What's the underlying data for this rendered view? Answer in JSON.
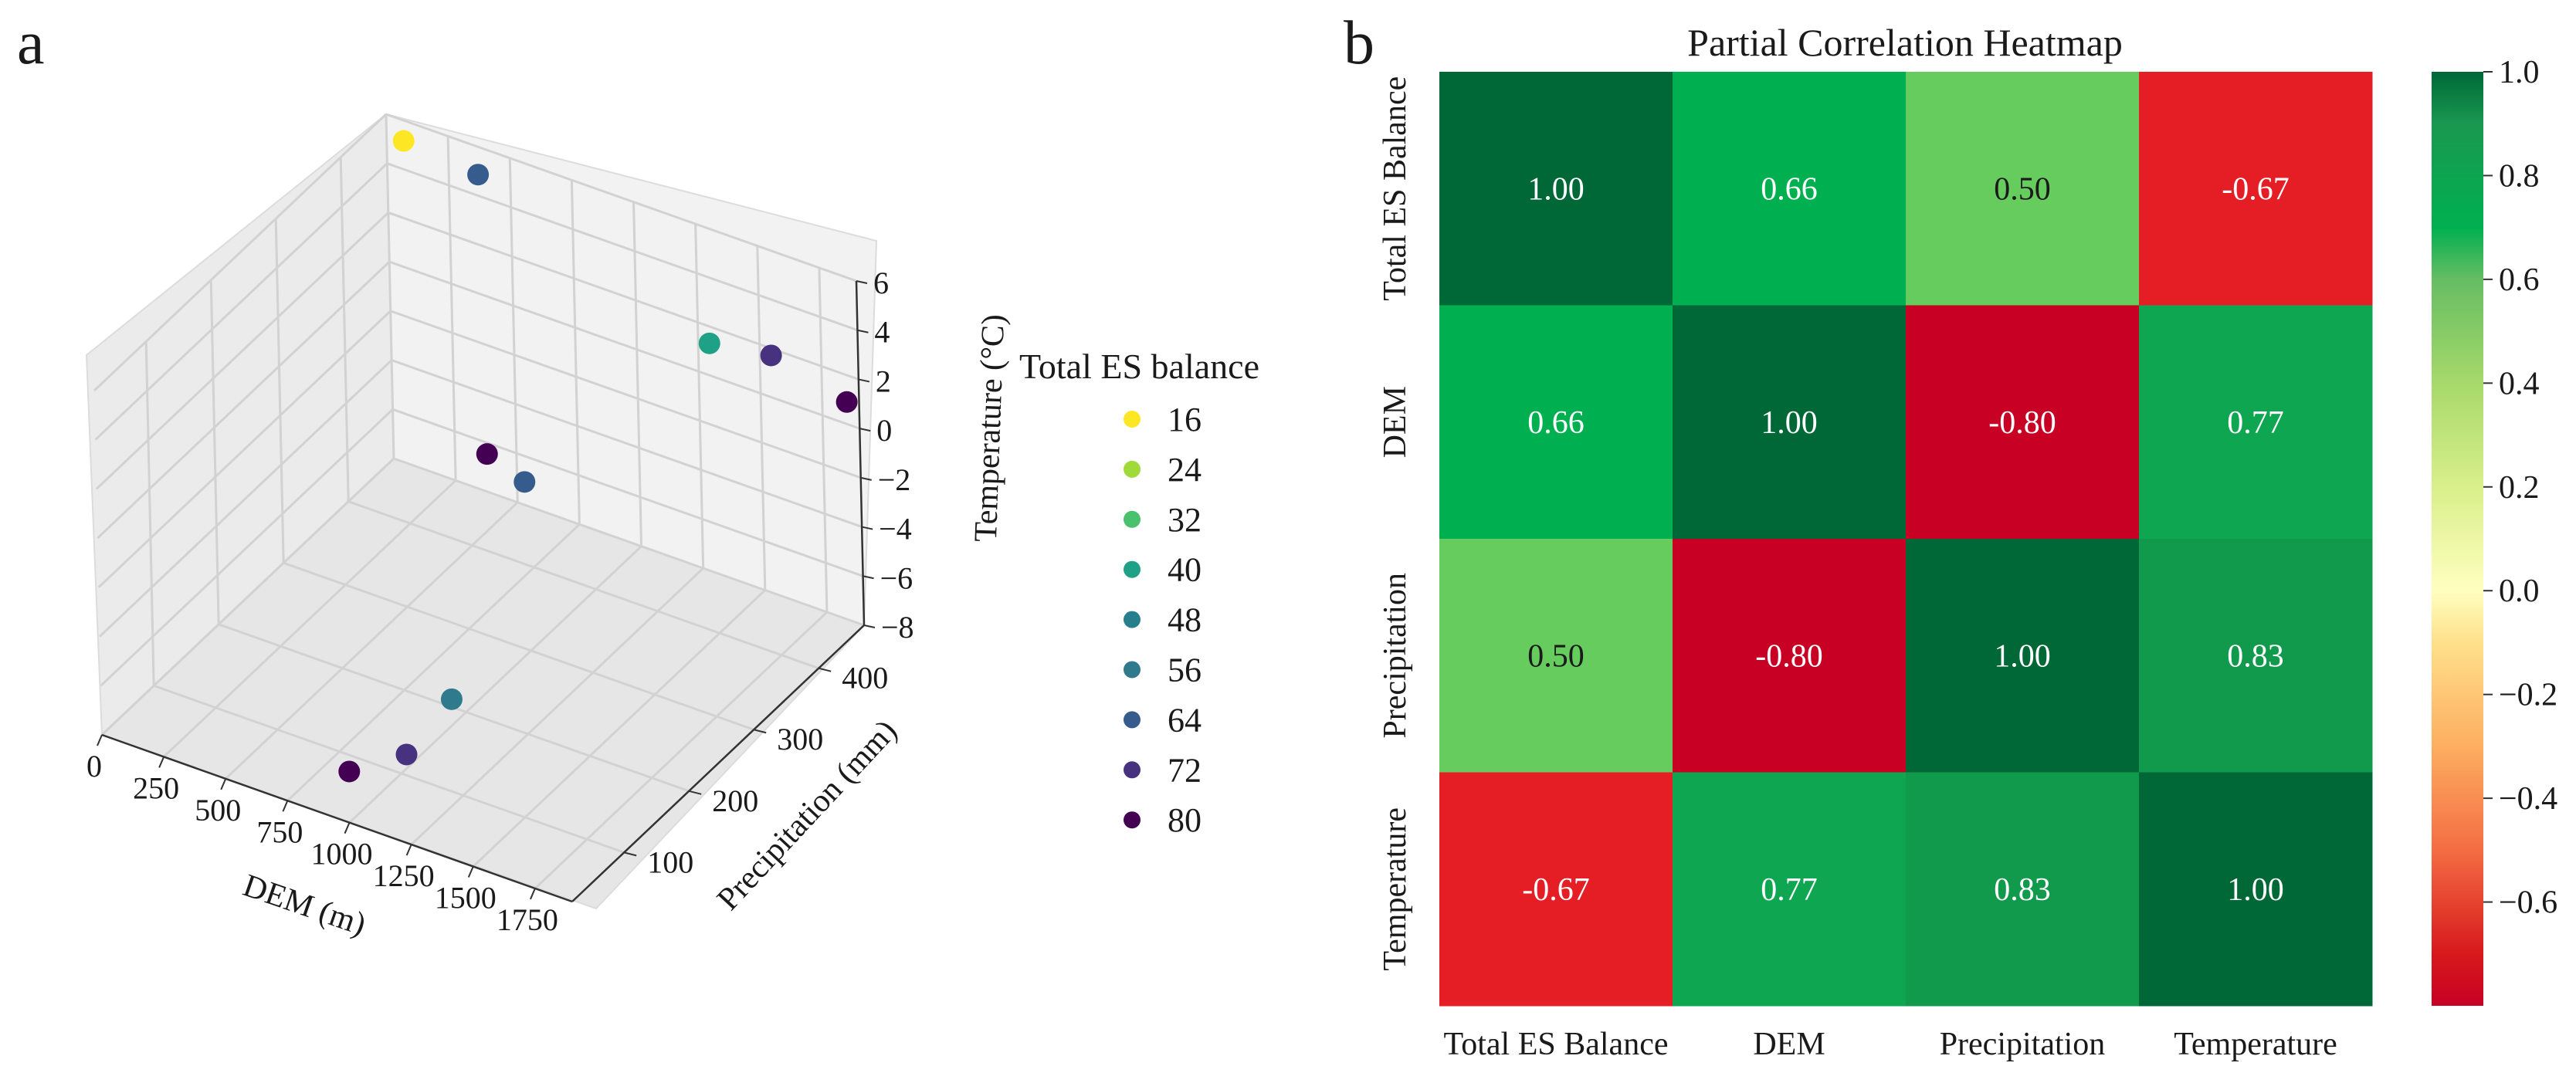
{
  "panels": {
    "a": "a",
    "b": "b"
  },
  "chart_data": [
    {
      "type": "scatter3d",
      "panel": "a",
      "xlabel": "DEM (m)",
      "ylabel": "Precipitation (mm)",
      "zlabel": "Temperature (°C)",
      "xlim": [
        0,
        1900
      ],
      "ylim": [
        20,
        470
      ],
      "zlim": [
        -8,
        6
      ],
      "xticks": [
        "0",
        "250",
        "500",
        "750",
        "1000",
        "1250",
        "1500",
        "1750"
      ],
      "yticks": [
        "100",
        "200",
        "300",
        "400"
      ],
      "zticks": [
        "−8",
        "−6",
        "−4",
        "−2",
        "0",
        "2",
        "4",
        "6"
      ],
      "legend_title": "Total ES balance",
      "legend_labels": [
        "16",
        "24",
        "32",
        "40",
        "48",
        "56",
        "64",
        "72",
        "80"
      ],
      "legend_colors": [
        "#fde725",
        "#a0da39",
        "#4ac16d",
        "#1fa187",
        "#277f8e",
        "#2f7a8c",
        "#365c8d",
        "#46327e",
        "#440154"
      ],
      "points": [
        {
          "dem": 150,
          "precip": 440,
          "temp": 6.2,
          "es": 16
        },
        {
          "dem": 450,
          "precip": 440,
          "temp": 5.9,
          "es": 64
        },
        {
          "dem": 1350,
          "precip": 450,
          "temp": 2.0,
          "es": 40
        },
        {
          "dem": 1600,
          "precip": 450,
          "temp": 2.4,
          "es": 72
        },
        {
          "dem": 1850,
          "precip": 470,
          "temp": 0.9,
          "es": 80
        },
        {
          "dem": 650,
          "precip": 370,
          "temp": -3.0,
          "es": 80
        },
        {
          "dem": 800,
          "precip": 370,
          "temp": -3.6,
          "es": 64
        },
        {
          "dem": 1050,
          "precip": 160,
          "temp": -6.3,
          "es": 56
        },
        {
          "dem": 1050,
          "precip": 90,
          "temp": -6.8,
          "es": 72
        },
        {
          "dem": 950,
          "precip": 40,
          "temp": -6.6,
          "es": 80
        }
      ]
    },
    {
      "type": "heatmap",
      "panel": "b",
      "title": "Partial Correlation Heatmap",
      "rows": [
        "Total ES Balance",
        "DEM",
        "Precipitation",
        "Temperature"
      ],
      "cols": [
        "Total ES Balance",
        "DEM",
        "Precipitation",
        "Temperature"
      ],
      "values": [
        [
          1.0,
          0.66,
          0.5,
          -0.67
        ],
        [
          0.66,
          1.0,
          -0.8,
          0.77
        ],
        [
          0.5,
          -0.8,
          1.0,
          0.83
        ],
        [
          -0.67,
          0.77,
          0.83,
          1.0
        ]
      ],
      "labels": [
        [
          "1.00",
          "0.66",
          "0.50",
          "-0.67"
        ],
        [
          "0.66",
          "1.00",
          "-0.80",
          "0.77"
        ],
        [
          "0.50",
          "-0.80",
          "1.00",
          "0.83"
        ],
        [
          "-0.67",
          "0.77",
          "0.83",
          "1.00"
        ]
      ],
      "colormap": "RdYlGn",
      "vmin": -0.8,
      "vmax": 1.0,
      "colorbar_ticks": [
        -0.6,
        -0.4,
        -0.2,
        0.0,
        0.2,
        0.4,
        0.6,
        0.8,
        1.0
      ],
      "colorbar_tick_labels": [
        "−0.6",
        "−0.4",
        "−0.2",
        "0.0",
        "0.2",
        "0.4",
        "0.6",
        "0.8",
        "1.0"
      ]
    }
  ]
}
